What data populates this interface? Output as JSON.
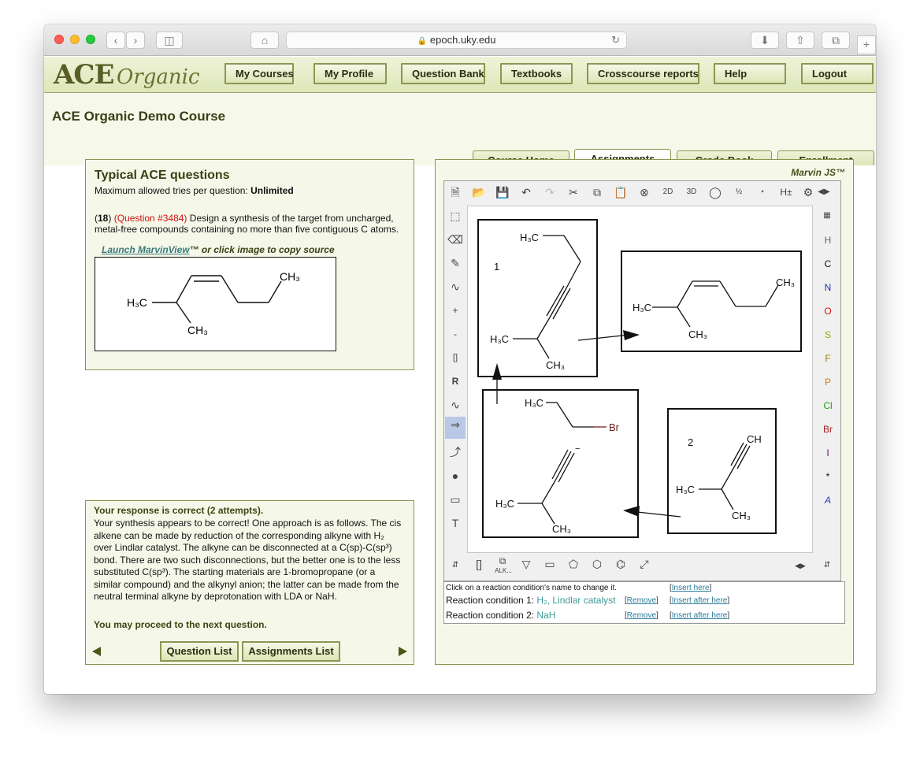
{
  "browser": {
    "url": "epoch.uky.edu"
  },
  "logo": {
    "ace": "ACE",
    "organic": "Organic"
  },
  "nav": [
    "My Courses",
    "My Profile",
    "Question Bank",
    "Textbooks",
    "Crosscourse reports",
    "Help",
    "Logout"
  ],
  "course_title": "ACE Organic Demo Course",
  "tabs": [
    "Course Home",
    "Assignments",
    "Grade Book",
    "Enrollment"
  ],
  "question": {
    "heading": "Typical ACE questions",
    "max_tries_label": "Maximum allowed tries per question: ",
    "max_tries_value": "Unlimited",
    "number_open": "(",
    "number": "18",
    "number_close": ")",
    "question_id": "(Question #3484)",
    "text_1": " Design a synthesis of the target from uncharged,",
    "text_2": "metal-free compounds containing no more than five contiguous C atoms.",
    "launch_link": "Launch MarvinView",
    "launch_suffix": "™ or click image to copy source"
  },
  "response": {
    "heading": "Your response is correct (2 attempts).",
    "lines": [
      "Your synthesis appears to be correct! One approach is as follows. The cis",
      "alkene can be made by reduction of the corresponding alkyne with H₂",
      "over Lindlar catalyst. The alkyne can be disconnected at a C(sp)-C(sp³)",
      "bond. There are two such disconnections, but the better one is to the less",
      "substituted C(sp³). The starting materials are 1-bromopropane (or a",
      "similar compound) and the alkynyl anion; the latter can be made from the",
      "neutral terminal alkyne by deprotonation with LDA or NaH."
    ],
    "proceed": "You may proceed to the next question.",
    "question_list_btn": "Question List",
    "assignments_list_btn": "Assignments List"
  },
  "marvin": {
    "label": "Marvin JS™",
    "elements": [
      "H",
      "C",
      "N",
      "O",
      "S",
      "F",
      "P",
      "Cl",
      "Br",
      "I",
      "*",
      "A"
    ],
    "element_colors": [
      "#666666",
      "#111111",
      "#2030a0",
      "#d01010",
      "#a0a000",
      "#a07a00",
      "#d08000",
      "#20a020",
      "#a02020",
      "#800080",
      "#111111",
      "#3030c0"
    ],
    "top_tool_labels": {
      "clean2d": "2D",
      "clean3d": "3D",
      "hplus": "H±"
    },
    "left_tool_labels": {
      "plus": "+",
      "minus": "-",
      "group": "R"
    },
    "alk_label": "ALK..."
  },
  "molecules": {
    "h3c": "H₃C",
    "ch3": "CH₃",
    "ch": "CH",
    "br": "Br",
    "label1": "1",
    "label2": "2",
    "minus": "−"
  },
  "conditions": {
    "hint": "Click on a reaction condition's name to change it.",
    "insert_here": "Insert here",
    "rows": [
      {
        "label": "Reaction condition 1: ",
        "value": "H₂, Lindlar catalyst",
        "remove": "Remove",
        "insert_after": "Insert after here"
      },
      {
        "label": "Reaction condition 2: ",
        "value": "NaH",
        "remove": "Remove",
        "insert_after": "Insert after here"
      }
    ]
  }
}
